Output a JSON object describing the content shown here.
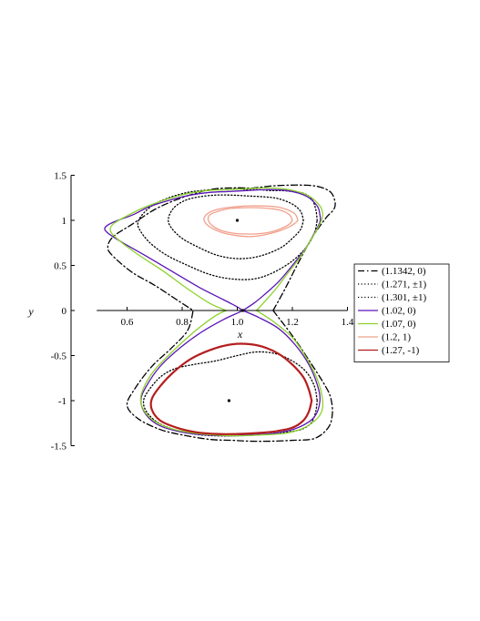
{
  "chart_data": {
    "type": "line",
    "title": "",
    "xlabel": "x",
    "ylabel": "y",
    "xlim": [
      0.49,
      1.4
    ],
    "ylim": [
      -1.5,
      1.5
    ],
    "x_ticks": [
      0.6,
      0.8,
      1.0,
      1.2,
      1.4
    ],
    "y_ticks": [
      -1.5,
      -1,
      -0.5,
      0,
      0.5,
      1,
      1.5
    ],
    "x_tick_labels": [
      "0.6",
      "0.8",
      "1.0",
      "1.2",
      "1.4"
    ],
    "y_tick_labels": [
      "-1.5",
      "-1",
      "-0.5",
      "0",
      "0.5",
      "1",
      "1.5"
    ],
    "grid": false,
    "legend_position": "right",
    "equilibria": [
      {
        "x": 1.02,
        "y": 0
      },
      {
        "x": 1.0,
        "y": 1.0
      },
      {
        "x": 0.97,
        "y": -1.0
      }
    ],
    "series": [
      {
        "name": "(1.1342, 0)",
        "color": "#000000",
        "dash": "dash-dot",
        "x": [
          1.13,
          1.17,
          1.22,
          1.27,
          1.32,
          1.35,
          1.355,
          1.34,
          1.3,
          1.25,
          1.18,
          1.12,
          1.06,
          1.02,
          0.98,
          0.92,
          0.86,
          0.78,
          0.7,
          0.62,
          0.55,
          0.53,
          0.55,
          0.62,
          0.7,
          0.78,
          0.84
        ],
        "y": [
          0,
          0.22,
          0.52,
          0.8,
          1.02,
          1.12,
          1.2,
          1.31,
          1.37,
          1.39,
          1.39,
          1.38,
          1.36,
          1.36,
          1.36,
          1.35,
          1.31,
          1.23,
          1.12,
          0.96,
          0.82,
          0.7,
          0.6,
          0.42,
          0.28,
          0.12,
          0
        ]
      },
      {
        "name": "(1.1342, 0)",
        "color": "#000000",
        "dash": "dash-dot",
        "x": [
          1.13,
          1.2,
          1.26,
          1.32,
          1.34,
          1.345,
          1.33,
          1.28,
          1.2,
          1.12,
          1.05,
          0.98,
          0.9,
          0.8,
          0.72,
          0.64,
          0.6,
          0.63,
          0.69,
          0.76,
          0.82,
          0.84
        ],
        "y": [
          0,
          -0.28,
          -0.55,
          -0.84,
          -0.98,
          -1.15,
          -1.3,
          -1.42,
          -1.44,
          -1.45,
          -1.45,
          -1.44,
          -1.43,
          -1.38,
          -1.32,
          -1.2,
          -1.05,
          -0.86,
          -0.62,
          -0.42,
          -0.22,
          0
        ]
      },
      {
        "name": "(1.271, ±1)",
        "color": "#000000",
        "dash": "dotted",
        "x": [
          1.29,
          1.285,
          1.27,
          1.24,
          1.2,
          1.16,
          1.12,
          1.08,
          1.04,
          1.0,
          0.96,
          0.92,
          0.87,
          0.82,
          0.76,
          0.7,
          0.66,
          0.64,
          0.645,
          0.68,
          0.74,
          0.82,
          0.9,
          0.98,
          1.06,
          1.13,
          1.2,
          1.25,
          1.28,
          1.29
        ],
        "y": [
          1.0,
          1.12,
          1.24,
          1.3,
          1.32,
          1.33,
          1.33,
          1.34,
          1.34,
          1.35,
          1.34,
          1.34,
          1.33,
          1.31,
          1.26,
          1.18,
          1.08,
          0.98,
          0.9,
          0.76,
          0.62,
          0.5,
          0.4,
          0.35,
          0.35,
          0.42,
          0.55,
          0.7,
          0.86,
          1.0
        ]
      },
      {
        "name": "(1.271, ±1)",
        "color": "#000000",
        "dash": "dotted",
        "x": [
          1.29,
          1.285,
          1.27,
          1.24,
          1.2,
          1.14,
          1.07,
          1.0,
          0.92,
          0.84,
          0.77,
          0.71,
          0.67,
          0.66,
          0.68,
          0.72,
          0.77,
          0.84,
          0.92,
          1.0,
          1.07,
          1.14,
          1.2,
          1.25,
          1.28,
          1.29
        ],
        "y": [
          -1.0,
          -1.12,
          -1.24,
          -1.31,
          -1.34,
          -1.36,
          -1.38,
          -1.39,
          -1.39,
          -1.37,
          -1.32,
          -1.24,
          -1.12,
          -1.0,
          -0.88,
          -0.74,
          -0.65,
          -0.6,
          -0.56,
          -0.5,
          -0.46,
          -0.48,
          -0.56,
          -0.68,
          -0.84,
          -1.0
        ]
      },
      {
        "name": "(1.301, ±1)",
        "color": "#000000",
        "dash": "dotted",
        "x": [
          1.24,
          1.23,
          1.2,
          1.15,
          1.1,
          1.04,
          0.98,
          0.92,
          0.86,
          0.81,
          0.77,
          0.75,
          0.76,
          0.8,
          0.86,
          0.92,
          0.98,
          1.04,
          1.1,
          1.16,
          1.2,
          1.23,
          1.24
        ],
        "y": [
          1.0,
          1.1,
          1.18,
          1.24,
          1.26,
          1.27,
          1.28,
          1.28,
          1.26,
          1.22,
          1.14,
          1.02,
          0.92,
          0.8,
          0.7,
          0.62,
          0.58,
          0.58,
          0.62,
          0.7,
          0.8,
          0.9,
          1.0
        ]
      },
      {
        "name": "(1.02, 0)",
        "color": "#5a14b4",
        "dash": "solid",
        "x": [
          1.02,
          1.06,
          1.1,
          1.15,
          1.2,
          1.25,
          1.28,
          1.3,
          1.3,
          1.29,
          1.25,
          1.18,
          1.1,
          1.03,
          0.97,
          0.9,
          0.83,
          0.75,
          0.68,
          0.62,
          0.55,
          0.52,
          0.53,
          0.58,
          0.66,
          0.76,
          0.86,
          0.95,
          1.0,
          1.02
        ],
        "y": [
          0,
          0.08,
          0.18,
          0.32,
          0.5,
          0.7,
          0.86,
          0.98,
          1.06,
          1.16,
          1.27,
          1.33,
          1.34,
          1.33,
          1.32,
          1.31,
          1.28,
          1.22,
          1.15,
          1.06,
          0.98,
          0.92,
          0.86,
          0.76,
          0.62,
          0.44,
          0.26,
          0.12,
          0.04,
          0
        ]
      },
      {
        "name": "(1.02, 0)",
        "color": "#5a14b4",
        "dash": "solid",
        "x": [
          1.02,
          1.08,
          1.15,
          1.21,
          1.26,
          1.29,
          1.3,
          1.28,
          1.22,
          1.14,
          1.05,
          0.97,
          0.88,
          0.8,
          0.72,
          0.67,
          0.65,
          0.67,
          0.72,
          0.79,
          0.87,
          0.95,
          1.0,
          1.02
        ],
        "y": [
          0,
          -0.08,
          -0.2,
          -0.38,
          -0.6,
          -0.82,
          -1.0,
          -1.18,
          -1.3,
          -1.36,
          -1.38,
          -1.39,
          -1.38,
          -1.35,
          -1.28,
          -1.16,
          -1.0,
          -0.84,
          -0.62,
          -0.42,
          -0.24,
          -0.1,
          -0.03,
          0
        ]
      },
      {
        "name": "(1.07, 0)",
        "color": "#8cd22c",
        "dash": "solid",
        "x": [
          1.07,
          1.1,
          1.14,
          1.18,
          1.23,
          1.27,
          1.3,
          1.31,
          1.3,
          1.26,
          1.19,
          1.11,
          1.03,
          0.96,
          0.89,
          0.81,
          0.73,
          0.66,
          0.6,
          0.55,
          0.54,
          0.57,
          0.64,
          0.73,
          0.82,
          0.9,
          0.96
        ],
        "y": [
          0,
          0.1,
          0.24,
          0.4,
          0.6,
          0.8,
          0.96,
          1.06,
          1.16,
          1.27,
          1.34,
          1.36,
          1.35,
          1.34,
          1.33,
          1.29,
          1.22,
          1.14,
          1.05,
          0.96,
          0.88,
          0.78,
          0.62,
          0.44,
          0.24,
          0.08,
          0
        ]
      },
      {
        "name": "(1.07, 0)",
        "color": "#8cd22c",
        "dash": "solid",
        "x": [
          1.07,
          1.13,
          1.2,
          1.25,
          1.29,
          1.31,
          1.3,
          1.25,
          1.18,
          1.09,
          1.0,
          0.91,
          0.82,
          0.74,
          0.68,
          0.65,
          0.66,
          0.7,
          0.77,
          0.85,
          0.92,
          0.96
        ],
        "y": [
          0,
          -0.12,
          -0.3,
          -0.52,
          -0.76,
          -1.0,
          -1.16,
          -1.29,
          -1.36,
          -1.38,
          -1.39,
          -1.38,
          -1.35,
          -1.29,
          -1.18,
          -1.02,
          -0.86,
          -0.66,
          -0.44,
          -0.22,
          -0.06,
          0
        ]
      },
      {
        "name": "(1.2, 1)",
        "color": "#f0a08c",
        "dash": "solid",
        "x": [
          1.22,
          1.21,
          1.18,
          1.14,
          1.09,
          1.04,
          0.99,
          0.94,
          0.9,
          0.88,
          0.885,
          0.91,
          0.95,
          1.0,
          1.05,
          1.1,
          1.15,
          1.19,
          1.21,
          1.22
        ],
        "y": [
          1.0,
          1.07,
          1.12,
          1.15,
          1.16,
          1.16,
          1.15,
          1.13,
          1.09,
          1.03,
          0.97,
          0.91,
          0.86,
          0.83,
          0.82,
          0.84,
          0.88,
          0.93,
          0.97,
          1.0
        ]
      },
      {
        "name": "(1.2, 1)",
        "color": "#f0a08c",
        "dash": "solid",
        "x": [
          1.2,
          1.19,
          1.16,
          1.12,
          1.07,
          1.02,
          0.97,
          0.93,
          0.9,
          0.895,
          0.91,
          0.94,
          0.98,
          1.02,
          1.07,
          1.12,
          1.16,
          1.19,
          1.2
        ],
        "y": [
          1.0,
          1.06,
          1.11,
          1.13,
          1.14,
          1.14,
          1.13,
          1.1,
          1.06,
          1.0,
          0.94,
          0.89,
          0.86,
          0.85,
          0.85,
          0.87,
          0.91,
          0.96,
          1.0
        ]
      },
      {
        "name": "(1.27, -1)",
        "color": "#b41e1e",
        "dash": "solid",
        "x": [
          1.27,
          1.26,
          1.24,
          1.2,
          1.14,
          1.07,
          1.0,
          0.93,
          0.85,
          0.78,
          0.72,
          0.69,
          0.69,
          0.72,
          0.77,
          0.83,
          0.9,
          0.97,
          1.03,
          1.09,
          1.15,
          1.2,
          1.24,
          1.26,
          1.27
        ],
        "y": [
          -1.0,
          -1.12,
          -1.22,
          -1.3,
          -1.34,
          -1.36,
          -1.37,
          -1.37,
          -1.35,
          -1.3,
          -1.22,
          -1.1,
          -0.98,
          -0.84,
          -0.68,
          -0.54,
          -0.44,
          -0.38,
          -0.37,
          -0.4,
          -0.48,
          -0.6,
          -0.74,
          -0.88,
          -1.0
        ]
      }
    ],
    "legend": [
      {
        "label": "(1.1342, 0)",
        "color": "#000000",
        "dash": "dash-dot"
      },
      {
        "label": "(1.271, ±1)",
        "color": "#000000",
        "dash": "dotted"
      },
      {
        "label": "(1.301, ±1)",
        "color": "#000000",
        "dash": "dotted"
      },
      {
        "label": "(1.02, 0)",
        "color": "#5a14b4",
        "dash": "solid"
      },
      {
        "label": "(1.07, 0)",
        "color": "#8cd22c",
        "dash": "solid"
      },
      {
        "label": "(1.2, 1)",
        "color": "#f0a08c",
        "dash": "solid"
      },
      {
        "label": "(1.27, -1)",
        "color": "#b41e1e",
        "dash": "solid"
      }
    ]
  }
}
